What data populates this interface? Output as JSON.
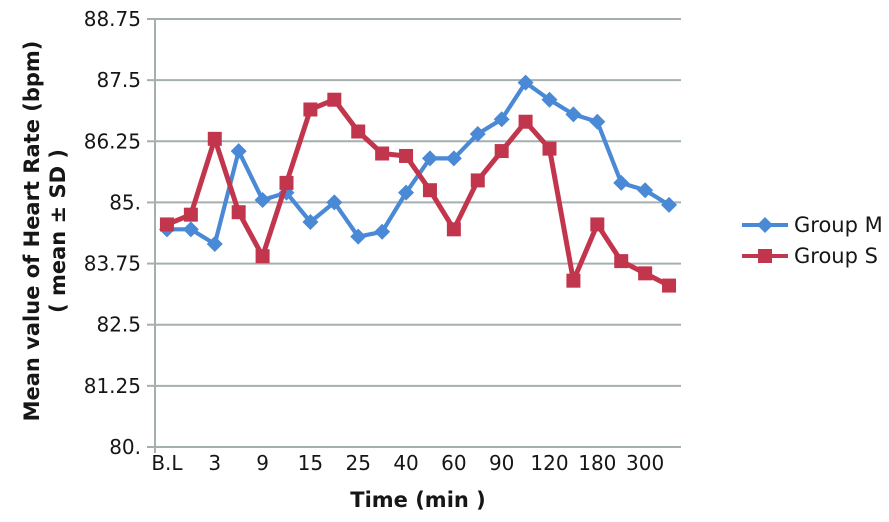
{
  "figure": {
    "y_axis_title_line1": "Mean value of Heart Rate (bpm)",
    "y_axis_title_line2": "( mean ± SD )",
    "x_axis_title": "Time (min )"
  },
  "legend": {
    "items": [
      {
        "label": "Group M",
        "color": "#4A89D5",
        "marker": "diamond"
      },
      {
        "label": "Group S",
        "color": "#C2364D",
        "marker": "square"
      }
    ]
  },
  "colors": {
    "grid": "#A6AFAF",
    "axis": "#A6AFAF",
    "text": "#161616",
    "background": "#ffffff",
    "group_m_blue": "#4A89D5",
    "group_s_red": "#C2364D"
  },
  "chart_data": {
    "type": "line",
    "title": "",
    "xlabel": "Time (min )",
    "ylabel": "Mean value of Heart Rate (bpm) ( mean ± SD )",
    "ylim": [
      80,
      88.75
    ],
    "y_ticks": [
      "88.75",
      "87.5",
      "86.25",
      "85.",
      "83.75",
      "82.5",
      "81.25",
      "80."
    ],
    "grid": "horizontal-only",
    "legend_position": "right-outside",
    "categories": [
      "B.L",
      "",
      "3",
      "",
      "9",
      "",
      "15",
      "",
      "25",
      "",
      "40",
      "",
      "60",
      "",
      "90",
      "",
      "120",
      "",
      "180",
      "",
      "300",
      ""
    ],
    "x_tick_labels": [
      "B.L",
      "3",
      "9",
      "15",
      "25",
      "40",
      "60",
      "90",
      "120",
      "180",
      "300"
    ],
    "series": [
      {
        "name": "Group M",
        "color": "#4A89D5",
        "marker": "diamond",
        "values": [
          84.45,
          84.45,
          84.15,
          86.05,
          85.05,
          85.2,
          84.6,
          85.0,
          84.3,
          84.4,
          85.2,
          85.9,
          85.9,
          86.4,
          86.7,
          87.45,
          87.1,
          86.8,
          86.65,
          85.4,
          85.25,
          84.95
        ]
      },
      {
        "name": "Group S",
        "color": "#C2364D",
        "marker": "square",
        "values": [
          84.55,
          84.75,
          86.3,
          84.8,
          83.9,
          85.4,
          86.9,
          87.1,
          86.45,
          86.0,
          85.95,
          85.25,
          84.45,
          85.45,
          86.05,
          86.65,
          86.1,
          83.4,
          84.55,
          83.8,
          83.55,
          83.3
        ]
      }
    ]
  }
}
